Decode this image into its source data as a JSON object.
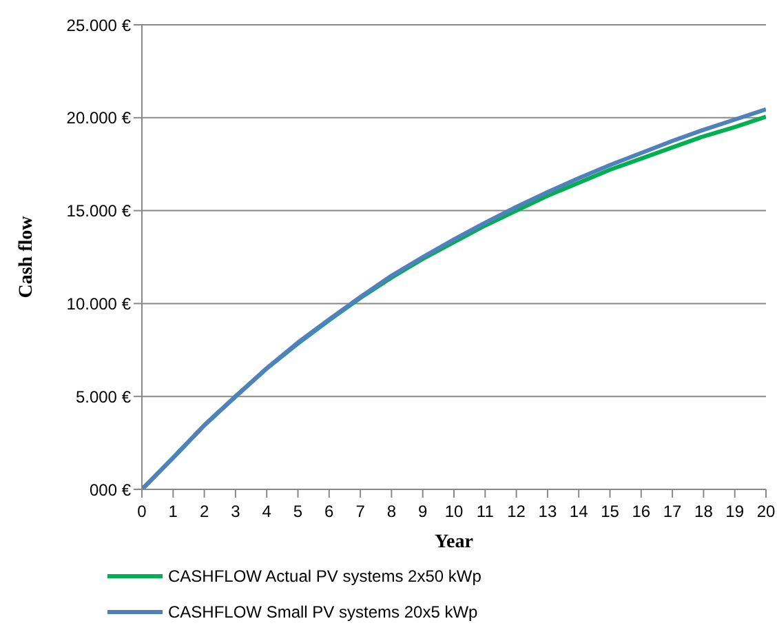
{
  "chart_data": {
    "type": "line",
    "xlabel": "Year",
    "ylabel": "Cash flow",
    "x": [
      0,
      1,
      2,
      3,
      4,
      5,
      6,
      7,
      8,
      9,
      10,
      11,
      12,
      13,
      14,
      15,
      16,
      17,
      18,
      19,
      20
    ],
    "series": [
      {
        "name": "CASHFLOW Actual PV systems 2x50 kWp",
        "color": "#00b050",
        "values": [
          0,
          1700,
          3450,
          5000,
          6500,
          7850,
          9100,
          10300,
          11400,
          12400,
          13300,
          14200,
          15000,
          15800,
          16500,
          17200,
          17800,
          18400,
          19000,
          19500,
          20050
        ]
      },
      {
        "name": "CASHFLOW Small PV systems 20x5 kWp",
        "color": "#4f81bd",
        "values": [
          0,
          1700,
          3450,
          5000,
          6520,
          7900,
          9150,
          10350,
          11500,
          12500,
          13450,
          14350,
          15200,
          16000,
          16750,
          17450,
          18100,
          18750,
          19350,
          19900,
          20450
        ]
      }
    ],
    "xlim": [
      0,
      20
    ],
    "xticks": [
      0,
      1,
      2,
      3,
      4,
      5,
      6,
      7,
      8,
      9,
      10,
      11,
      12,
      13,
      14,
      15,
      16,
      17,
      18,
      19,
      20
    ],
    "ylim": [
      0,
      25000
    ],
    "yticks": [
      {
        "value": 0,
        "label": "000 €"
      },
      {
        "value": 5000,
        "label": "5.000 €"
      },
      {
        "value": 10000,
        "label": "10.000 €"
      },
      {
        "value": 15000,
        "label": "15.000 €"
      },
      {
        "value": 20000,
        "label": "20.000 €"
      },
      {
        "value": 25000,
        "label": "25.000 €"
      }
    ],
    "grid": "y",
    "legend": "bottom",
    "marker": "none",
    "line_style": "solid"
  }
}
